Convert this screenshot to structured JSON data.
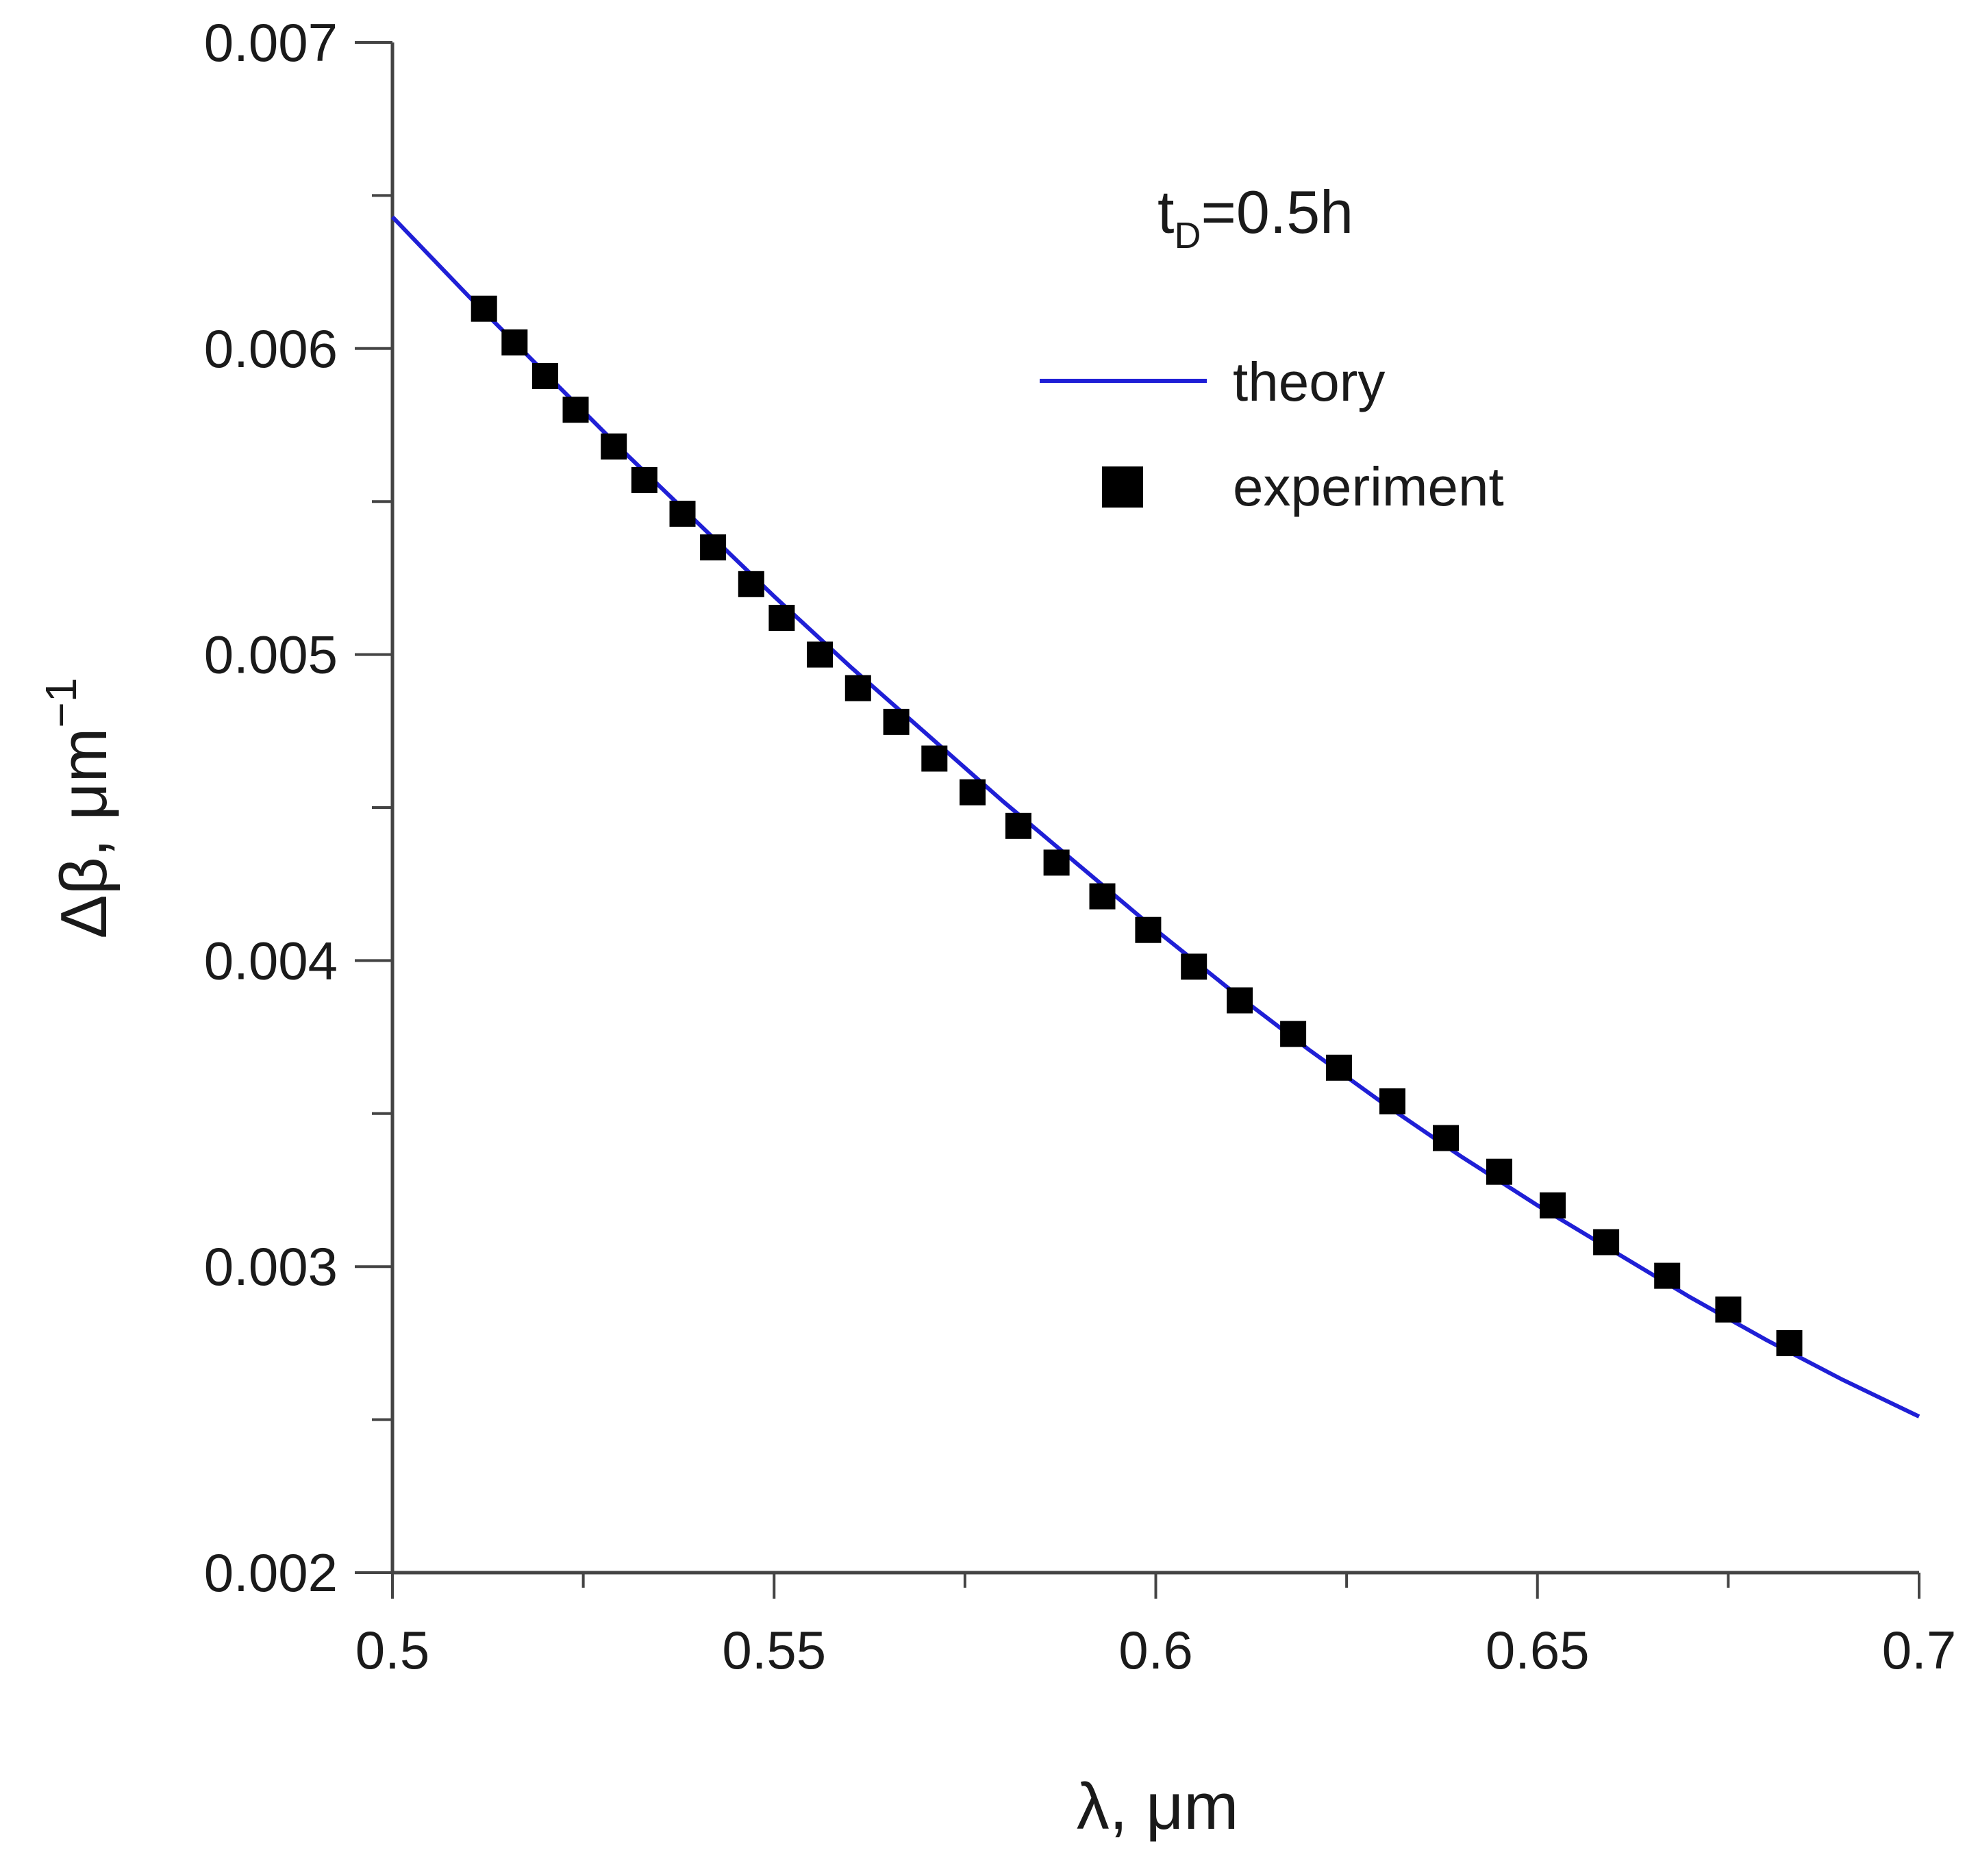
{
  "chart_data": {
    "type": "line",
    "title": "",
    "xlabel": "λ, μm",
    "ylabel_main": "Δβ, μm",
    "ylabel_sup": "−1",
    "xlim": [
      0.5,
      0.7
    ],
    "ylim": [
      0.002,
      0.007
    ],
    "x_major_ticks": [
      0.5,
      0.55,
      0.6,
      0.65,
      0.7
    ],
    "x_tick_labels": [
      "0.5",
      "0.55",
      "0.6",
      "0.65",
      "0.7"
    ],
    "x_minor_ticks": [
      0.525,
      0.575,
      0.625,
      0.675
    ],
    "y_major_ticks": [
      0.002,
      0.003,
      0.004,
      0.005,
      0.006,
      0.007
    ],
    "y_tick_labels": [
      "0.002",
      "0.003",
      "0.004",
      "0.005",
      "0.006",
      "0.007"
    ],
    "y_minor_ticks": [
      0.0025,
      0.0035,
      0.0045,
      0.0055,
      0.0065
    ],
    "grid": false,
    "annotation": {
      "main": "t",
      "sub": "D",
      "rest": "=0.5h"
    },
    "legend_position": "top-right",
    "series": [
      {
        "name": "theory",
        "kind": "line",
        "color": "#1f1fd6",
        "x": [
          0.5,
          0.51,
          0.52,
          0.53,
          0.54,
          0.55,
          0.56,
          0.57,
          0.58,
          0.59,
          0.6,
          0.61,
          0.62,
          0.63,
          0.64,
          0.65,
          0.66,
          0.67,
          0.68,
          0.69,
          0.7
        ],
        "y": [
          0.00643,
          0.00617,
          0.00592,
          0.00567,
          0.00543,
          0.00519,
          0.00496,
          0.00474,
          0.00452,
          0.00431,
          0.0041,
          0.0039,
          0.00371,
          0.00353,
          0.00336,
          0.0032,
          0.00305,
          0.0029,
          0.00276,
          0.00263,
          0.00251
        ]
      },
      {
        "name": "experiment",
        "kind": "scatter",
        "color": "#000000",
        "x": [
          0.512,
          0.516,
          0.52,
          0.524,
          0.529,
          0.533,
          0.538,
          0.542,
          0.547,
          0.551,
          0.556,
          0.561,
          0.566,
          0.571,
          0.576,
          0.582,
          0.587,
          0.593,
          0.599,
          0.605,
          0.611,
          0.618,
          0.624,
          0.631,
          0.638,
          0.645,
          0.652,
          0.659,
          0.667,
          0.675,
          0.683
        ],
        "y": [
          0.00613,
          0.00602,
          0.00591,
          0.0058,
          0.00568,
          0.00557,
          0.00546,
          0.00535,
          0.00523,
          0.00512,
          0.005,
          0.00489,
          0.00478,
          0.00466,
          0.00455,
          0.00444,
          0.00432,
          0.00421,
          0.0041,
          0.00398,
          0.00387,
          0.00376,
          0.00365,
          0.00354,
          0.00342,
          0.00331,
          0.0032,
          0.00308,
          0.00297,
          0.00286,
          0.00275
        ]
      }
    ]
  }
}
